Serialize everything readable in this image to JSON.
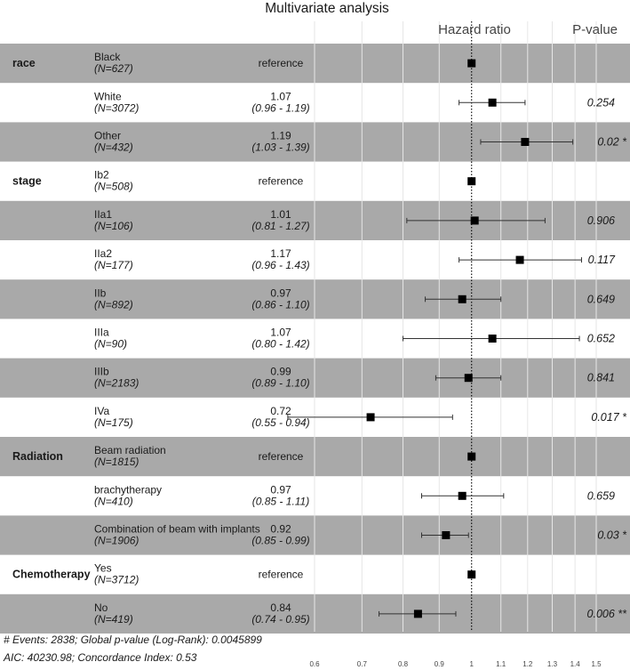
{
  "chart_data": {
    "type": "forest",
    "title": "Multivariate analysis",
    "col_headers": {
      "hr": "Hazard ratio",
      "p": "P-value"
    },
    "x_ticks": [
      0.6,
      0.7,
      0.8,
      0.9,
      1,
      1.1,
      1.2,
      1.3,
      1.4,
      1.5
    ],
    "x_tick_labels": [
      "0.6",
      "0.7",
      "0.8",
      "0.9",
      "1",
      "1.1",
      "1.2",
      "1.3",
      "1.4",
      "1.5"
    ],
    "x_scale": "log",
    "reference_line": 1,
    "rows": [
      {
        "variable": "race",
        "level": "Black",
        "n": "(N=627)",
        "hr_text": "reference",
        "ci_text": "",
        "hr": 1.0,
        "ci": null,
        "p": ""
      },
      {
        "variable": "",
        "level": "White",
        "n": "(N=3072)",
        "hr_text": "1.07",
        "ci_text": "(0.96 - 1.19)",
        "hr": 1.07,
        "ci": [
          0.96,
          1.19
        ],
        "p": "0.254"
      },
      {
        "variable": "",
        "level": "Other",
        "n": "(N=432)",
        "hr_text": "1.19",
        "ci_text": "(1.03 - 1.39)",
        "hr": 1.19,
        "ci": [
          1.03,
          1.39
        ],
        "p": "0.02 *"
      },
      {
        "variable": "stage",
        "level": "Ib2",
        "n": "(N=508)",
        "hr_text": "reference",
        "ci_text": "",
        "hr": 1.0,
        "ci": null,
        "p": ""
      },
      {
        "variable": "",
        "level": "IIa1",
        "n": "(N=106)",
        "hr_text": "1.01",
        "ci_text": "(0.81 - 1.27)",
        "hr": 1.01,
        "ci": [
          0.81,
          1.27
        ],
        "p": "0.906"
      },
      {
        "variable": "",
        "level": "IIa2",
        "n": "(N=177)",
        "hr_text": "1.17",
        "ci_text": "(0.96 - 1.43)",
        "hr": 1.17,
        "ci": [
          0.96,
          1.43
        ],
        "p": "0.117"
      },
      {
        "variable": "",
        "level": "IIb",
        "n": "(N=892)",
        "hr_text": "0.97",
        "ci_text": "(0.86 - 1.10)",
        "hr": 0.97,
        "ci": [
          0.86,
          1.1
        ],
        "p": "0.649"
      },
      {
        "variable": "",
        "level": "IIIa",
        "n": "(N=90)",
        "hr_text": "1.07",
        "ci_text": "(0.80 - 1.42)",
        "hr": 1.07,
        "ci": [
          0.8,
          1.42
        ],
        "p": "0.652"
      },
      {
        "variable": "",
        "level": "IIIb",
        "n": "(N=2183)",
        "hr_text": "0.99",
        "ci_text": "(0.89 - 1.10)",
        "hr": 0.99,
        "ci": [
          0.89,
          1.1
        ],
        "p": "0.841"
      },
      {
        "variable": "",
        "level": "IVa",
        "n": "(N=175)",
        "hr_text": "0.72",
        "ci_text": "(0.55 - 0.94)",
        "hr": 0.72,
        "ci": [
          0.55,
          0.94
        ],
        "p": "0.017 *"
      },
      {
        "variable": "Radiation",
        "level": "Beam radiation",
        "n": "(N=1815)",
        "hr_text": "reference",
        "ci_text": "",
        "hr": 1.0,
        "ci": null,
        "p": ""
      },
      {
        "variable": "",
        "level": "brachytherapy",
        "n": "(N=410)",
        "hr_text": "0.97",
        "ci_text": "(0.85 - 1.11)",
        "hr": 0.97,
        "ci": [
          0.85,
          1.11
        ],
        "p": "0.659"
      },
      {
        "variable": "",
        "level": "Combination of beam with implants",
        "n": "(N=1906)",
        "hr_text": "0.92",
        "ci_text": "(0.85 - 0.99)",
        "hr": 0.92,
        "ci": [
          0.85,
          0.99
        ],
        "p": "0.03 *"
      },
      {
        "variable": "Chemotherapy",
        "level": "Yes",
        "n": "(N=3712)",
        "hr_text": "reference",
        "ci_text": "",
        "hr": 1.0,
        "ci": null,
        "p": ""
      },
      {
        "variable": "",
        "level": "No",
        "n": "(N=419)",
        "hr_text": "0.84",
        "ci_text": "(0.74 - 0.95)",
        "hr": 0.84,
        "ci": [
          0.74,
          0.95
        ],
        "p": "0.006 **"
      }
    ],
    "footnotes": [
      "# Events: 2838; Global p-value (Log-Rank): 0.0045899",
      "AIC: 40230.98; Concordance Index: 0.53"
    ],
    "colors": {
      "band": "#a9a9a9",
      "point": "#000000",
      "gridline": "#e6e6e6",
      "reference_line": "#000000"
    }
  }
}
